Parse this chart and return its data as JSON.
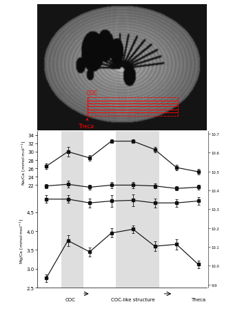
{
  "x": [
    0,
    1,
    2,
    3,
    4,
    5,
    6,
    7
  ],
  "na_ca_line1": [
    26.5,
    30.0,
    28.5,
    32.5,
    32.5,
    30.5,
    26.2,
    25.2
  ],
  "na_ca_line1_err": [
    0.7,
    1.2,
    0.6,
    0.4,
    0.4,
    0.7,
    0.7,
    0.7
  ],
  "na_ca_line2": [
    21.8,
    22.2,
    21.5,
    22.0,
    22.0,
    21.8,
    21.2,
    21.5
  ],
  "na_ca_line2_err": [
    0.5,
    0.8,
    0.5,
    0.7,
    0.7,
    0.6,
    0.5,
    0.5
  ],
  "mg_ca_line1": [
    4.85,
    4.85,
    4.75,
    4.8,
    4.82,
    4.75,
    4.75,
    4.8
  ],
  "mg_ca_line1_err": [
    0.1,
    0.1,
    0.12,
    0.15,
    0.15,
    0.12,
    0.1,
    0.1
  ],
  "mg_ca_line2": [
    2.75,
    3.75,
    3.45,
    3.95,
    4.05,
    3.6,
    3.65,
    3.12
  ],
  "mg_ca_line2_err": [
    0.1,
    0.15,
    0.12,
    0.12,
    0.1,
    0.13,
    0.14,
    0.1
  ],
  "na_ylim": [
    20,
    35
  ],
  "na_yticks": [
    22,
    24,
    26,
    28,
    30,
    32,
    34
  ],
  "mg_ylim": [
    2.5,
    5.0
  ],
  "mg_yticks": [
    2.5,
    3.0,
    3.5,
    4.0,
    4.5
  ],
  "right_ytick_positions_na": [
    24.5,
    25.0
  ],
  "right_ytick_labels_na": [
    "10.7",
    ""
  ],
  "shade1": [
    0.7,
    1.7
  ],
  "shade2": [
    3.2,
    5.2
  ],
  "shade_color": "#d0d0d0",
  "line_color": "#111111",
  "bg_color": "#ffffff",
  "na_ylabel": "Na/Ca [mmol mol$^{-1}$]",
  "mg_ylabel": "Mg/Ca [mmol mol$^{-1}$]",
  "xlim": [
    -0.4,
    7.4
  ],
  "xlabel_coc": "COC",
  "xlabel_coc_x": 1.1,
  "xlabel_coclike": "COC-like structure",
  "xlabel_coclike_x": 4.0,
  "xlabel_theca": "Theca",
  "xlabel_theca_x": 7.0,
  "right_ticks_labels": [
    "9.9",
    "10.0",
    "10.1",
    "10.2",
    "10.3",
    "10.4",
    "10.5",
    "10.6",
    "10.7"
  ]
}
